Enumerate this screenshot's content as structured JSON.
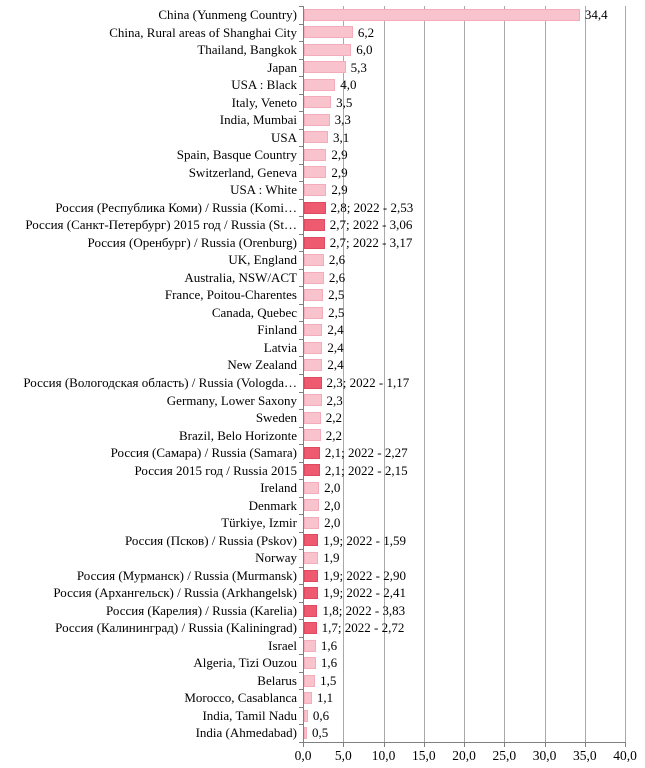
{
  "chart_data": {
    "type": "bar",
    "orientation": "horizontal",
    "title": "",
    "xlabel": "",
    "ylabel": "",
    "xlim": [
      0,
      40
    ],
    "grid": true,
    "legend": "none",
    "x_ticks": [
      {
        "value": 0,
        "label": "0,0"
      },
      {
        "value": 5,
        "label": "5,0"
      },
      {
        "value": 10,
        "label": "10,0"
      },
      {
        "value": 15,
        "label": "15,0"
      },
      {
        "value": 20,
        "label": "20,0"
      },
      {
        "value": 25,
        "label": "25,0"
      },
      {
        "value": 30,
        "label": "30,0"
      },
      {
        "value": 35,
        "label": "35,0"
      },
      {
        "value": 40,
        "label": "40,0"
      }
    ],
    "colors": {
      "default_bar_fill": "#f8c3cd",
      "default_bar_border": "#f3adba",
      "highlight_bar_fill": "#ee5b70",
      "highlight_bar_border": "#e04a60",
      "gridline": "#a9a9a9",
      "axis": "#7f7f7f",
      "text": "#000000"
    },
    "rows": [
      {
        "label": "China (Yunmeng Country)",
        "value": 34.4,
        "value_label": "34,4",
        "highlight": false
      },
      {
        "label": "China, Rural areas of Shanghai City",
        "value": 6.2,
        "value_label": "6,2",
        "highlight": false
      },
      {
        "label": "Thailand, Bangkok",
        "value": 6.0,
        "value_label": "6,0",
        "highlight": false
      },
      {
        "label": "Japan",
        "value": 5.3,
        "value_label": "5,3",
        "highlight": false
      },
      {
        "label": "USA : Black",
        "value": 4.0,
        "value_label": "4,0",
        "highlight": false
      },
      {
        "label": "Italy, Veneto",
        "value": 3.5,
        "value_label": "3,5",
        "highlight": false
      },
      {
        "label": "India, Mumbai",
        "value": 3.3,
        "value_label": "3,3",
        "highlight": false
      },
      {
        "label": "USA",
        "value": 3.1,
        "value_label": "3,1",
        "highlight": false
      },
      {
        "label": "Spain, Basque Country",
        "value": 2.9,
        "value_label": "2,9",
        "highlight": false
      },
      {
        "label": "Switzerland, Geneva",
        "value": 2.9,
        "value_label": "2,9",
        "highlight": false
      },
      {
        "label": "USA : White",
        "value": 2.9,
        "value_label": "2,9",
        "highlight": false
      },
      {
        "label": "Россия (Республика Коми) / Russia (Komi…",
        "value": 2.8,
        "value_label": "2,8; 2022 - 2,53",
        "highlight": true
      },
      {
        "label": "Россия (Санкт-Петербург) 2015 год / Russia (St…",
        "value": 2.7,
        "value_label": "2,7; 2022 - 3,06",
        "highlight": true
      },
      {
        "label": "Россия (Оренбург) / Russia (Orenburg)",
        "value": 2.7,
        "value_label": "2,7; 2022 - 3,17",
        "highlight": true
      },
      {
        "label": "UK, England",
        "value": 2.6,
        "value_label": "2,6",
        "highlight": false
      },
      {
        "label": "Australia, NSW/ACT",
        "value": 2.6,
        "value_label": "2,6",
        "highlight": false
      },
      {
        "label": "France, Poitou-Charentes",
        "value": 2.5,
        "value_label": "2,5",
        "highlight": false
      },
      {
        "label": "Canada, Quebec",
        "value": 2.5,
        "value_label": "2,5",
        "highlight": false
      },
      {
        "label": "Finland",
        "value": 2.4,
        "value_label": "2,4",
        "highlight": false
      },
      {
        "label": "Latvia",
        "value": 2.4,
        "value_label": "2,4",
        "highlight": false
      },
      {
        "label": "New Zealand",
        "value": 2.4,
        "value_label": "2,4",
        "highlight": false
      },
      {
        "label": "Россия (Вологодская область) / Russia (Vologda…",
        "value": 2.3,
        "value_label": "2,3; 2022 - 1,17",
        "highlight": true
      },
      {
        "label": "Germany, Lower Saxony",
        "value": 2.3,
        "value_label": "2,3",
        "highlight": false
      },
      {
        "label": "Sweden",
        "value": 2.2,
        "value_label": "2,2",
        "highlight": false
      },
      {
        "label": "Brazil, Belo Horizonte",
        "value": 2.2,
        "value_label": "2,2",
        "highlight": false
      },
      {
        "label": "Россия (Самара) / Russia (Samara)",
        "value": 2.1,
        "value_label": "2,1; 2022 - 2,27",
        "highlight": true
      },
      {
        "label": "Россия 2015 год / Russia 2015",
        "value": 2.1,
        "value_label": "2,1; 2022 - 2,15",
        "highlight": true
      },
      {
        "label": "Ireland",
        "value": 2.0,
        "value_label": "2,0",
        "highlight": false
      },
      {
        "label": "Denmark",
        "value": 2.0,
        "value_label": "2,0",
        "highlight": false
      },
      {
        "label": "Türkiye, Izmir",
        "value": 2.0,
        "value_label": "2,0",
        "highlight": false
      },
      {
        "label": "Россия (Псков) / Russia (Pskov)",
        "value": 1.9,
        "value_label": "1,9; 2022 - 1,59",
        "highlight": true
      },
      {
        "label": "Norway",
        "value": 1.9,
        "value_label": "1,9",
        "highlight": false
      },
      {
        "label": "Россия (Мурманск)  / Russia (Murmansk)",
        "value": 1.9,
        "value_label": "1,9; 2022 - 2,90",
        "highlight": true
      },
      {
        "label": "Россия (Архангельск)  / Russia (Arkhangelsk)",
        "value": 1.9,
        "value_label": "1,9; 2022 - 2,41",
        "highlight": true
      },
      {
        "label": "Россия (Карелия) / Russia (Karelia)",
        "value": 1.8,
        "value_label": "1,8; 2022 - 3,83",
        "highlight": true
      },
      {
        "label": "Россия (Калининград) / Russia (Kaliningrad)",
        "value": 1.7,
        "value_label": "1,7; 2022 - 2,72",
        "highlight": true
      },
      {
        "label": "Israel",
        "value": 1.6,
        "value_label": "1,6",
        "highlight": false
      },
      {
        "label": "Algeria, Tizi Ouzou",
        "value": 1.6,
        "value_label": "1,6",
        "highlight": false
      },
      {
        "label": "Belarus",
        "value": 1.5,
        "value_label": "1,5",
        "highlight": false
      },
      {
        "label": "Morocco, Casablanca",
        "value": 1.1,
        "value_label": "1,1",
        "highlight": false
      },
      {
        "label": "India, Tamil Nadu",
        "value": 0.6,
        "value_label": "0,6",
        "highlight": false
      },
      {
        "label": "India (Ahmedabad)",
        "value": 0.5,
        "value_label": "0,5",
        "highlight": false
      }
    ]
  }
}
